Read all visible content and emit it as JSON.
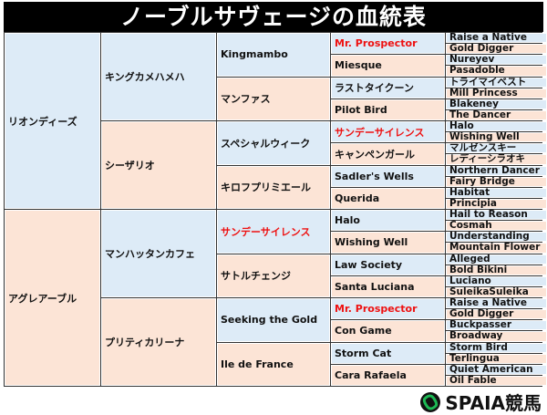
{
  "title": "ノーブルサヴェージの血統表",
  "colors": {
    "sire": "#ddebf7",
    "dam": "#fce4d6",
    "highlight": "#ee1111",
    "title_bg": "#000000",
    "logo": "#1db954"
  },
  "pedigree": [
    [
      {
        "n": "リオンディーズ"
      },
      {
        "n": "アグレアーブル"
      }
    ],
    [
      {
        "n": "キングカメハメハ"
      },
      {
        "n": "シーザリオ"
      },
      {
        "n": "マンハッタンカフェ"
      },
      {
        "n": "プリティカリーナ"
      }
    ],
    [
      {
        "n": "Kingmambo"
      },
      {
        "n": "マンファス"
      },
      {
        "n": "スペシャルウィーク"
      },
      {
        "n": "キロフプリミエール"
      },
      {
        "n": "サンデーサイレンス",
        "red": true
      },
      {
        "n": "サトルチェンジ"
      },
      {
        "n": "Seeking the Gold"
      },
      {
        "n": "Ile de France"
      }
    ],
    [
      {
        "n": "Mr. Prospector",
        "red": true
      },
      {
        "n": "Miesque"
      },
      {
        "n": "ラストタイクーン"
      },
      {
        "n": "Pilot Bird"
      },
      {
        "n": "サンデーサイレンス",
        "red": true
      },
      {
        "n": "キャンペンガール"
      },
      {
        "n": "Sadler's Wells"
      },
      {
        "n": "Querida"
      },
      {
        "n": "Halo"
      },
      {
        "n": "Wishing Well"
      },
      {
        "n": "Law Society"
      },
      {
        "n": "Santa Luciana"
      },
      {
        "n": "Mr. Prospector",
        "red": true
      },
      {
        "n": "Con Game"
      },
      {
        "n": "Storm Cat"
      },
      {
        "n": "Cara Rafaela"
      }
    ],
    [
      {
        "n": "Raise a Native"
      },
      {
        "n": "Gold Digger"
      },
      {
        "n": "Nureyev"
      },
      {
        "n": "Pasadoble"
      },
      {
        "n": "トライマイベスト"
      },
      {
        "n": "Mill Princess"
      },
      {
        "n": "Blakeney"
      },
      {
        "n": "The Dancer"
      },
      {
        "n": "Halo"
      },
      {
        "n": "Wishing Well"
      },
      {
        "n": "マルゼンスキー"
      },
      {
        "n": "レディーシラオキ"
      },
      {
        "n": "Northern Dancer"
      },
      {
        "n": "Fairy Bridge"
      },
      {
        "n": "Habitat"
      },
      {
        "n": "Principia"
      },
      {
        "n": "Hail to Reason"
      },
      {
        "n": "Cosmah"
      },
      {
        "n": "Understanding"
      },
      {
        "n": "Mountain Flower"
      },
      {
        "n": "Alleged"
      },
      {
        "n": "Bold Bikini"
      },
      {
        "n": "Luciano"
      },
      {
        "n": "SuleikaSuleika"
      },
      {
        "n": "Raise a Native"
      },
      {
        "n": "Gold Digger"
      },
      {
        "n": "Buckpasser"
      },
      {
        "n": "Broadway"
      },
      {
        "n": "Storm Bird"
      },
      {
        "n": "Terlingua"
      },
      {
        "n": "Quiet American"
      },
      {
        "n": "Oil Fable"
      }
    ]
  ],
  "logo": {
    "text": "SPAIA競馬",
    "icon": "spaia-knot-icon"
  }
}
